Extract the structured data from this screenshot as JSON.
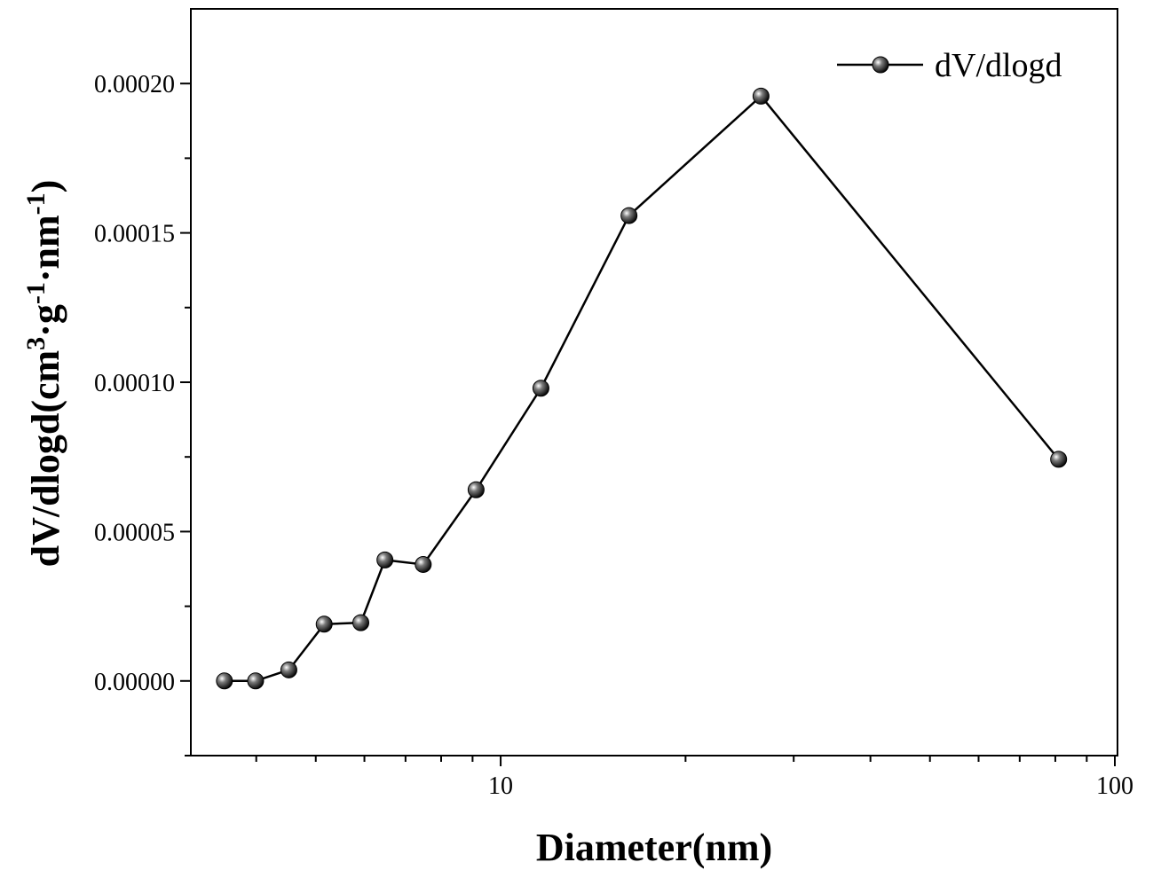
{
  "chart_data": {
    "type": "line",
    "xscale": "log",
    "xlabel": "Diameter(nm)",
    "ylabel": "dV/dlogd(cm3·g-1·nm-1)",
    "ylabel_parts": {
      "base": "dV/dlogd(cm",
      "sup1": "3",
      "mid1": "·g",
      "sup2": "-1",
      "mid2": "·nm",
      "sup3": "-1",
      "end": ")"
    },
    "xlim": [
      3.13,
      101
    ],
    "ylim": [
      -2.5e-05,
      0.000225
    ],
    "xticks": [
      {
        "value": 10,
        "label": "10"
      },
      {
        "value": 100,
        "label": "100"
      }
    ],
    "yticks": [
      {
        "value": 0,
        "label": "0.00000"
      },
      {
        "value": 5e-05,
        "label": "0.00005"
      },
      {
        "value": 0.0001,
        "label": "0.00010"
      },
      {
        "value": 0.00015,
        "label": "0.00015"
      },
      {
        "value": 0.0002,
        "label": "0.00020"
      }
    ],
    "legend_position": "top-right",
    "series": [
      {
        "name": "dV/dlogd",
        "color": "#000000",
        "x": [
          3.55,
          3.99,
          4.52,
          5.16,
          5.92,
          6.48,
          7.48,
          9.12,
          11.63,
          16.18,
          26.54,
          81.0
        ],
        "y": [
          0.0,
          0.0,
          3.7e-06,
          1.9e-05,
          1.95e-05,
          4.05e-05,
          3.9e-05,
          6.4e-05,
          9.8e-05,
          0.0001558,
          0.0001958,
          7.42e-05
        ]
      }
    ]
  }
}
